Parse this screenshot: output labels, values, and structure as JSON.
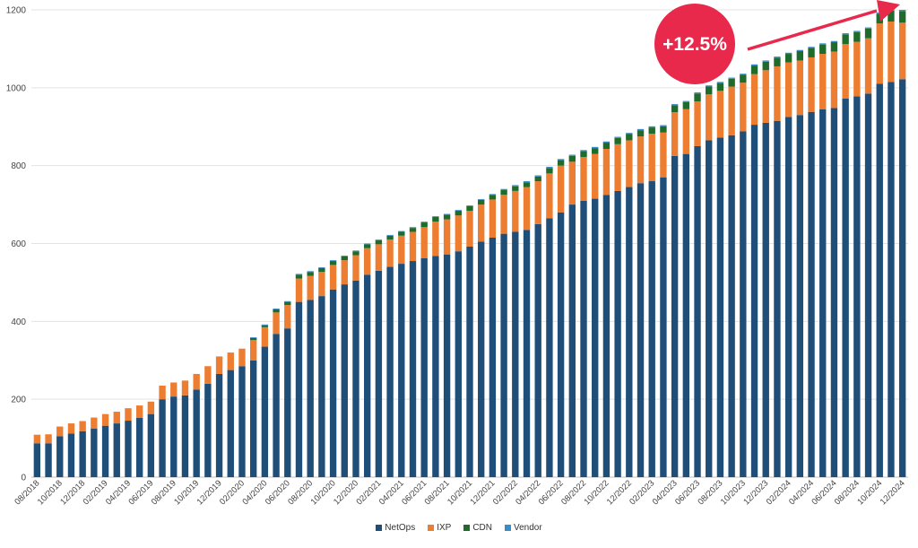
{
  "chart_data": {
    "type": "bar",
    "stacked": true,
    "title": "",
    "xlabel": "",
    "ylabel": "",
    "ylim": [
      0,
      1200
    ],
    "yticks": [
      0,
      200,
      400,
      600,
      800,
      1000,
      1200
    ],
    "grid": true,
    "legend_position": "bottom",
    "categories": [
      "08/2018",
      "09/2018",
      "10/2018",
      "11/2018",
      "12/2018",
      "01/2019",
      "02/2019",
      "03/2019",
      "04/2019",
      "05/2019",
      "06/2019",
      "07/2019",
      "08/2019",
      "09/2019",
      "10/2019",
      "11/2019",
      "12/2019",
      "01/2020",
      "02/2020",
      "03/2020",
      "04/2020",
      "05/2020",
      "06/2020",
      "07/2020",
      "08/2020",
      "09/2020",
      "10/2020",
      "11/2020",
      "12/2020",
      "01/2021",
      "02/2021",
      "03/2021",
      "04/2021",
      "05/2021",
      "06/2021",
      "07/2021",
      "08/2021",
      "09/2021",
      "10/2021",
      "11/2021",
      "12/2021",
      "01/2022",
      "02/2022",
      "03/2022",
      "04/2022",
      "05/2022",
      "06/2022",
      "07/2022",
      "08/2022",
      "09/2022",
      "10/2022",
      "11/2022",
      "12/2022",
      "01/2023",
      "02/2023",
      "03/2023",
      "04/2023",
      "05/2023",
      "06/2023",
      "07/2023",
      "08/2023",
      "09/2023",
      "10/2023",
      "11/2023",
      "12/2023",
      "01/2024",
      "02/2024",
      "03/2024",
      "04/2024",
      "05/2024",
      "06/2024",
      "07/2024",
      "08/2024",
      "09/2024",
      "10/2024",
      "11/2024",
      "12/2024"
    ],
    "tick_labels": [
      "08/2018",
      "10/2018",
      "12/2018",
      "02/2019",
      "04/2019",
      "06/2019",
      "08/2019",
      "10/2019",
      "12/2019",
      "02/2020",
      "04/2020",
      "06/2020",
      "08/2020",
      "10/2020",
      "12/2020",
      "02/2021",
      "04/2021",
      "06/2021",
      "08/2021",
      "10/2021",
      "12/2021",
      "02/2022",
      "04/2022",
      "06/2022",
      "08/2022",
      "10/2022",
      "12/2022",
      "02/2023",
      "04/2023",
      "06/2023",
      "08/2023",
      "10/2023",
      "12/2023",
      "02/2024",
      "04/2024",
      "06/2024",
      "08/2024",
      "10/2024",
      "12/2024"
    ],
    "series": [
      {
        "name": "NetOps",
        "color": "#1f4e79",
        "values": [
          87,
          87,
          105,
          112,
          118,
          125,
          132,
          138,
          145,
          152,
          162,
          200,
          207,
          210,
          225,
          240,
          265,
          275,
          285,
          300,
          335,
          368,
          382,
          450,
          455,
          465,
          482,
          495,
          505,
          520,
          530,
          540,
          548,
          555,
          562,
          568,
          572,
          580,
          592,
          605,
          615,
          625,
          630,
          635,
          650,
          665,
          680,
          700,
          710,
          715,
          725,
          735,
          745,
          755,
          760,
          770,
          825,
          830,
          850,
          865,
          872,
          878,
          888,
          905,
          910,
          915,
          925,
          930,
          938,
          945,
          948,
          972,
          978,
          985,
          1010,
          1015,
          1022
        ]
      },
      {
        "name": "IXP",
        "color": "#ed7d31",
        "values": [
          22,
          23,
          25,
          26,
          26,
          28,
          30,
          30,
          32,
          32,
          32,
          35,
          36,
          38,
          40,
          45,
          45,
          45,
          45,
          52,
          50,
          55,
          60,
          60,
          62,
          62,
          63,
          62,
          65,
          68,
          68,
          70,
          72,
          75,
          80,
          88,
          90,
          92,
          92,
          95,
          98,
          100,
          105,
          110,
          110,
          115,
          120,
          110,
          112,
          115,
          118,
          120,
          120,
          120,
          122,
          115,
          112,
          115,
          115,
          118,
          120,
          125,
          125,
          130,
          135,
          140,
          140,
          140,
          140,
          142,
          145,
          140,
          140,
          142,
          155,
          155,
          145
        ]
      },
      {
        "name": "CDN",
        "color": "#1e6b2c",
        "values": [
          0,
          0,
          0,
          0,
          0,
          0,
          0,
          0,
          0,
          0,
          0,
          0,
          0,
          0,
          0,
          0,
          0,
          0,
          0,
          5,
          5,
          8,
          8,
          10,
          10,
          10,
          10,
          10,
          10,
          10,
          10,
          10,
          10,
          10,
          12,
          12,
          12,
          12,
          12,
          12,
          12,
          12,
          12,
          12,
          12,
          14,
          14,
          15,
          15,
          15,
          16,
          16,
          16,
          16,
          16,
          16,
          18,
          18,
          20,
          20,
          20,
          20,
          20,
          22,
          22,
          22,
          22,
          24,
          24,
          24,
          24,
          25,
          25,
          25,
          25,
          28,
          30
        ]
      },
      {
        "name": "Vendor",
        "color": "#3a8cc7",
        "values": [
          0,
          0,
          0,
          0,
          0,
          0,
          0,
          0,
          0,
          0,
          0,
          0,
          0,
          0,
          0,
          0,
          0,
          0,
          0,
          2,
          2,
          2,
          2,
          2,
          2,
          2,
          2,
          2,
          2,
          2,
          2,
          2,
          2,
          2,
          2,
          2,
          2,
          2,
          2,
          2,
          2,
          3,
          3,
          3,
          3,
          3,
          3,
          3,
          3,
          3,
          3,
          3,
          3,
          3,
          3,
          3,
          3,
          3,
          3,
          3,
          3,
          3,
          3,
          3,
          3,
          3,
          3,
          3,
          3,
          3,
          3,
          3,
          3,
          3,
          3,
          3,
          3
        ]
      }
    ],
    "annotations": [
      {
        "text": "+12.5%",
        "type": "badge",
        "color": "#e8294c",
        "arrow": "up-right"
      }
    ]
  }
}
